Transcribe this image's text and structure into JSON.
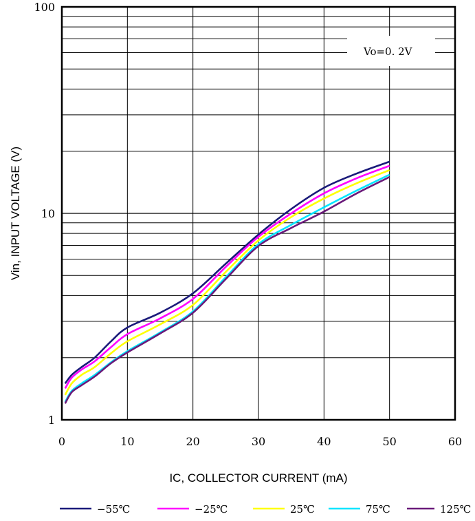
{
  "chart_data": {
    "type": "line",
    "xlabel": "IC, COLLECTOR CURRENT (mA)",
    "ylabel": "Vin, INPUT VOLTAGE (V)",
    "xlim": [
      0,
      60
    ],
    "ylim": [
      1,
      100
    ],
    "y_scale": "log",
    "x_ticks": [
      "0",
      "10",
      "20",
      "30",
      "40",
      "50",
      "60"
    ],
    "y_ticks": [
      "1",
      "10",
      "100"
    ],
    "grid": true,
    "legend_position": "bottom",
    "annotation": "Vo=0. 2V",
    "series": [
      {
        "name": "−55℃",
        "color": "#1a1a7a",
        "x": [
          0.5,
          1.5,
          3,
          5,
          7.5,
          10,
          15,
          20,
          25,
          30,
          35,
          40,
          45,
          50
        ],
        "y": [
          1.5,
          1.65,
          1.8,
          2.0,
          2.4,
          2.8,
          3.3,
          4.1,
          5.7,
          7.9,
          10.5,
          13.3,
          15.6,
          17.8
        ]
      },
      {
        "name": "−25℃",
        "color": "#ff00ff",
        "x": [
          0.5,
          1.5,
          3,
          5,
          7.5,
          10,
          15,
          20,
          25,
          30,
          35,
          40,
          45,
          50
        ],
        "y": [
          1.42,
          1.6,
          1.75,
          1.92,
          2.25,
          2.6,
          3.1,
          3.85,
          5.5,
          7.7,
          10.0,
          12.5,
          14.8,
          17.0
        ]
      },
      {
        "name": "25℃",
        "color": "#ffff00",
        "x": [
          0.5,
          1.5,
          3,
          5,
          7.5,
          10,
          15,
          20,
          25,
          30,
          35,
          40,
          45,
          50
        ],
        "y": [
          1.32,
          1.5,
          1.65,
          1.8,
          2.1,
          2.4,
          2.9,
          3.6,
          5.2,
          7.4,
          9.6,
          11.8,
          14.0,
          16.2
        ]
      },
      {
        "name": "75℃",
        "color": "#00e5ff",
        "x": [
          0.5,
          1.5,
          3,
          5,
          7.5,
          10,
          15,
          20,
          25,
          30,
          35,
          40,
          45,
          50
        ],
        "y": [
          1.22,
          1.38,
          1.5,
          1.65,
          1.9,
          2.15,
          2.65,
          3.35,
          4.9,
          7.1,
          8.8,
          10.7,
          12.9,
          15.4
        ]
      },
      {
        "name": "125℃",
        "color": "#6a1a7a",
        "x": [
          0.5,
          1.5,
          3,
          5,
          7.5,
          10,
          15,
          20,
          25,
          30,
          35,
          40,
          45,
          50
        ],
        "y": [
          1.2,
          1.36,
          1.47,
          1.62,
          1.88,
          2.12,
          2.62,
          3.3,
          4.8,
          6.95,
          8.5,
          10.2,
          12.5,
          15.0
        ]
      }
    ]
  }
}
